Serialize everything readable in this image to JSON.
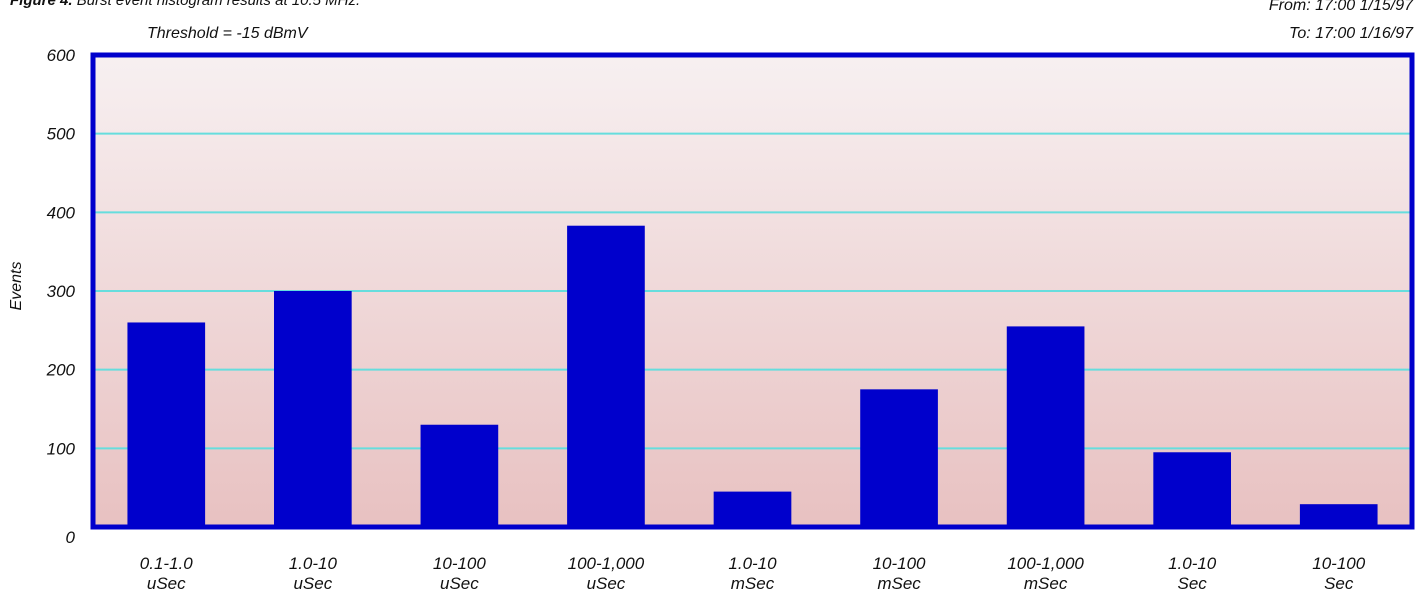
{
  "figure": {
    "caption_bold": "Figure 4.",
    "caption_text": "Burst event histogram results at 10.5 MHz.",
    "threshold": "Threshold = -15 dBmV",
    "from": "From: 17:00 1/15/97",
    "to": "To: 17:00 1/16/97"
  },
  "colors": {
    "bar": "#0000cc",
    "frame": "#0000cc",
    "grid": "#66dddd",
    "bg_top": "#f7f0f1",
    "bg_bottom": "#e8c1c1"
  },
  "chart_data": {
    "type": "bar",
    "title": "",
    "xlabel": "",
    "ylabel": "Events",
    "ylim": [
      0,
      600
    ],
    "yticks": [
      "0",
      "100",
      "200",
      "300",
      "400",
      "500",
      "600"
    ],
    "grid": true,
    "categories": [
      [
        "0.1-1.0",
        "uSec"
      ],
      [
        "1.0-10",
        "uSec"
      ],
      [
        "10-100",
        "uSec"
      ],
      [
        "100-1,000",
        "uSec"
      ],
      [
        "1.0-10",
        "mSec"
      ],
      [
        "10-100",
        "mSec"
      ],
      [
        "100-1,000",
        "mSec"
      ],
      [
        "1.0-10",
        "Sec"
      ],
      [
        "10-100",
        "Sec"
      ]
    ],
    "values": [
      260,
      300,
      130,
      383,
      45,
      175,
      255,
      95,
      29
    ]
  }
}
